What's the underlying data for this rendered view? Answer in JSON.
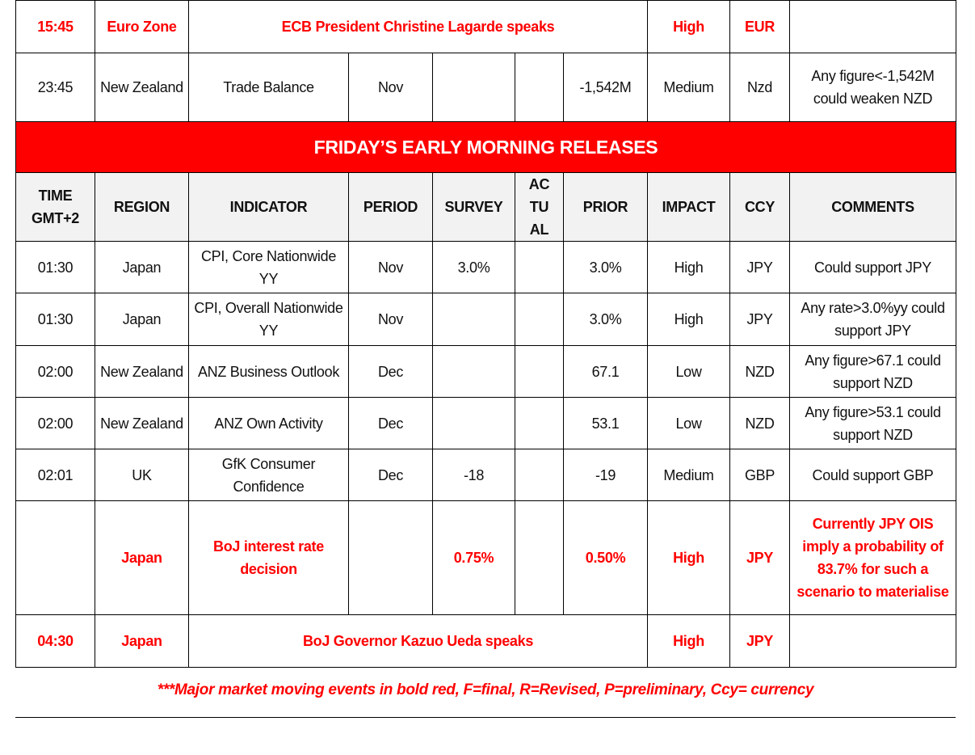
{
  "colors": {
    "accent_red": "#ff0000",
    "header_bg": "#f2f2f2"
  },
  "banner": "FRIDAY’S EARLY MORNING RELEASES",
  "headers": [
    "TIME GMT+2",
    "REGION",
    "INDICATOR",
    "PERIOD",
    "SURVEY",
    "ACTUAL",
    "PRIOR",
    "IMPACT",
    "CCY",
    "COMMENTS"
  ],
  "headers_display": [
    "TIME\nGMT+2",
    "REGION",
    "INDICATOR",
    "PERIOD",
    "SURVEY",
    "AC\nTU\nAL",
    "PRIOR",
    "IMPACT",
    "CCY",
    "COMMENTS"
  ],
  "rows_before": [
    {
      "kind": "event",
      "major": true,
      "time": "15:45",
      "region": "Euro Zone",
      "event": "ECB President Christine Lagarde speaks",
      "impact": "High",
      "ccy": "EUR",
      "comments": ""
    },
    {
      "kind": "release",
      "major": false,
      "time": "23:45",
      "region": "New Zealand",
      "indicator": "Trade Balance",
      "period": "Nov",
      "survey": "",
      "actual": "",
      "prior": "-1,542M",
      "impact": "Medium",
      "ccy": "Nzd",
      "comments": "Any figure<-1,542M could weaken NZD"
    }
  ],
  "rows_after": [
    {
      "kind": "release",
      "major": false,
      "time": "01:30",
      "region": "Japan",
      "indicator": "CPI, Core Nationwide YY",
      "period": "Nov",
      "survey": "3.0%",
      "actual": "",
      "prior": "3.0%",
      "impact": "High",
      "ccy": "JPY",
      "comments": "Could support JPY"
    },
    {
      "kind": "release",
      "major": false,
      "time": "01:30",
      "region": "Japan",
      "indicator": "CPI, Overall Nationwide YY",
      "period": "Nov",
      "survey": "",
      "actual": "",
      "prior": "3.0%",
      "impact": "High",
      "ccy": "JPY",
      "comments": "Any rate>3.0%yy could support JPY"
    },
    {
      "kind": "release",
      "major": false,
      "time": "02:00",
      "region": "New Zealand",
      "indicator": "ANZ Business Outlook",
      "period": "Dec",
      "survey": "",
      "actual": "",
      "prior": "67.1",
      "impact": "Low",
      "ccy": "NZD",
      "comments": "Any figure>67.1 could support NZD"
    },
    {
      "kind": "release",
      "major": false,
      "time": "02:00",
      "region": "New Zealand",
      "indicator": "ANZ Own Activity",
      "period": "Dec",
      "survey": "",
      "actual": "",
      "prior": "53.1",
      "impact": "Low",
      "ccy": "NZD",
      "comments": "Any figure>53.1 could support NZD"
    },
    {
      "kind": "release",
      "major": false,
      "time": "02:01",
      "region": "UK",
      "indicator": "GfK Consumer Confidence",
      "period": "Dec",
      "survey": "-18",
      "actual": "",
      "prior": "-19",
      "impact": "Medium",
      "ccy": "GBP",
      "comments": "Could support GBP"
    },
    {
      "kind": "release",
      "major": true,
      "time": "",
      "region": "Japan",
      "indicator": "BoJ interest rate decision",
      "period": "",
      "survey": "0.75%",
      "actual": "",
      "prior": "0.50%",
      "impact": "High",
      "ccy": "JPY",
      "comments": "Currently JPY OIS imply a probability of 83.7% for such a scenario to materialise"
    },
    {
      "kind": "event",
      "major": true,
      "time": "04:30",
      "region": "Japan",
      "event": "BoJ Governor Kazuo Ueda speaks",
      "impact": "High",
      "ccy": "JPY",
      "comments": ""
    }
  ],
  "footnote": "***Major market moving events in bold red, F=final, R=Revised, P=preliminary, Ccy= currency"
}
